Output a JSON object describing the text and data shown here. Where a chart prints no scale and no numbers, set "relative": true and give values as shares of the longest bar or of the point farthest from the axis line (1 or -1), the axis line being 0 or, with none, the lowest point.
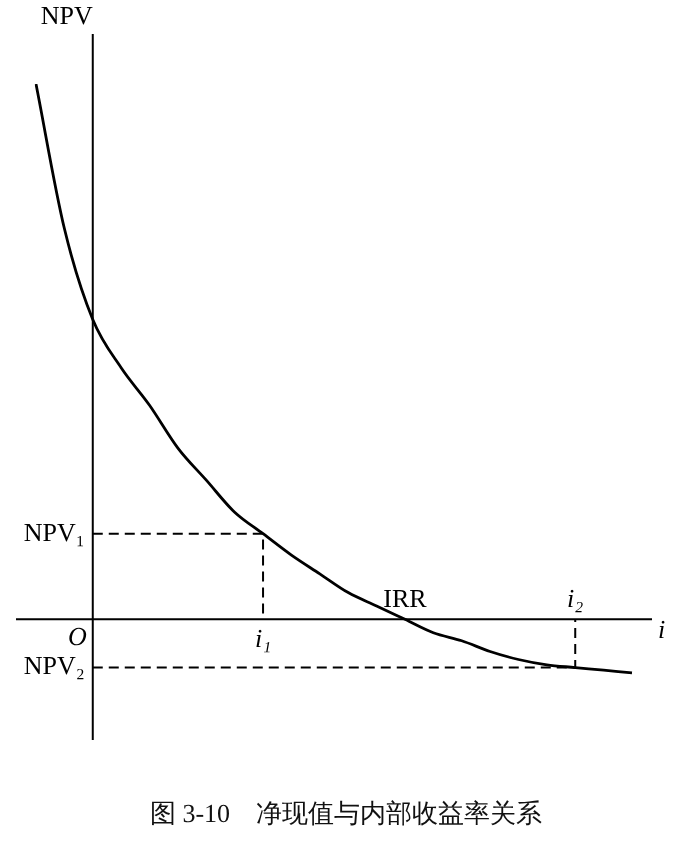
{
  "chart_data": {
    "type": "line",
    "relative": true,
    "title": "图 3-10　净现值与内部收益率关系",
    "xlabel": "i",
    "ylabel": "NPV",
    "categories": [
      null,
      null,
      null,
      null,
      null,
      null,
      null,
      null,
      null,
      null,
      null,
      null,
      null,
      null,
      null,
      null,
      null,
      null,
      null,
      null,
      null,
      null
    ],
    "series": [
      {
        "color": "#000000",
        "values": [
          1,
          0.73,
          0.56,
          0.47,
          0.4,
          0.32,
          0.26,
          0.2,
          0.16,
          0.12,
          0.085,
          0.05,
          0.025,
          0,
          -0.025,
          -0.04,
          -0.06,
          -0.075,
          -0.085,
          -0.09,
          -0.095,
          -0.1
        ]
      }
    ],
    "annotations": [
      "O",
      "NPV₁",
      "NPV₂",
      "i₁",
      "IRR",
      "i₂"
    ],
    "legend": false,
    "marker": "none",
    "line_style": "solid"
  }
}
